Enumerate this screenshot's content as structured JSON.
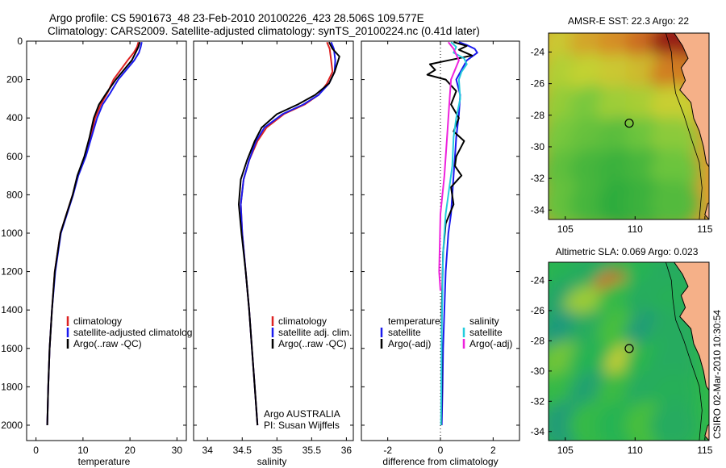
{
  "header": {
    "title_line1": "Argo profile: CS 5901673_48 23-Feb-2010 20100226_423 28.506S 109.577E",
    "title_line2": "Climatology: CARS2009. Satellite-adjusted climatology: synTS_20100224.nc (0.41d later)"
  },
  "side_label": "CSIRO 02-Mar-2010 10:30:54",
  "colors": {
    "climatology": "#dd2222",
    "satellite": "#1a1aee",
    "argo": "#000000",
    "sat_salinity": "#22ccdd",
    "argo_salinity": "#ee22dd",
    "land": "#f5b088",
    "marker": "#000000"
  },
  "chart_data": [
    {
      "type": "line",
      "id": "temperature",
      "xlabel": "temperature",
      "ylabel": "",
      "xlim": [
        -2,
        32
      ],
      "ylim": [
        2080,
        0
      ],
      "y_reversed": true,
      "xticks": [
        0,
        10,
        20,
        30
      ],
      "yticks": [
        0,
        200,
        400,
        600,
        800,
        1000,
        1200,
        1400,
        1600,
        1800,
        2000
      ],
      "legend": [
        "climatology",
        "satellite-adjusted climatolog",
        "Argo(..raw -QC)"
      ],
      "legend_position": "lower-center",
      "series": [
        {
          "name": "climatology",
          "color_key": "climatology",
          "x": [
            21.8,
            21.5,
            20.8,
            19.5,
            16.5,
            15.2,
            13.8,
            12.6,
            11.6,
            10.4,
            8.9,
            7.8,
            6.5,
            5.2,
            4.0,
            3.4,
            2.9,
            2.6,
            2.4
          ],
          "y": [
            5,
            30,
            60,
            100,
            200,
            270,
            330,
            400,
            500,
            600,
            700,
            800,
            900,
            1000,
            1200,
            1400,
            1600,
            1800,
            2000
          ]
        },
        {
          "name": "satellite-adjusted climatolog",
          "color_key": "satellite",
          "x": [
            22.5,
            22.3,
            21.9,
            20.9,
            17.5,
            15.8,
            14.2,
            13.0,
            11.8,
            10.6,
            9.0,
            7.9,
            6.6,
            5.3,
            4.1,
            3.4,
            2.9,
            2.6,
            2.4
          ],
          "y": [
            5,
            30,
            60,
            100,
            200,
            270,
            330,
            400,
            500,
            600,
            700,
            800,
            900,
            1000,
            1200,
            1400,
            1600,
            1800,
            2000
          ]
        },
        {
          "name": "Argo(..raw -QC)",
          "color_key": "argo",
          "x": [
            22.1,
            21.8,
            21.2,
            20.4,
            17.0,
            15.0,
            13.4,
            12.3,
            11.4,
            10.3,
            8.8,
            7.8,
            6.5,
            5.2,
            4.0,
            3.4,
            2.9,
            2.6,
            2.4
          ],
          "y": [
            5,
            30,
            60,
            100,
            200,
            270,
            330,
            400,
            500,
            600,
            700,
            800,
            900,
            1000,
            1200,
            1400,
            1600,
            1800,
            2000
          ]
        }
      ]
    },
    {
      "type": "line",
      "id": "salinity",
      "xlabel": "salinity",
      "ylabel": "",
      "xlim": [
        33.8,
        36.1
      ],
      "ylim": [
        2080,
        0
      ],
      "y_reversed": true,
      "xticks": [
        34,
        34.5,
        35,
        35.5,
        36
      ],
      "yticks": [],
      "legend": [
        "climatology",
        "satellite adj. clim.",
        "Argo(..raw -QC)"
      ],
      "legend_position": "lower-center",
      "annotations": [
        "Argo AUSTRALIA",
        "PI: Susan Wijffels"
      ],
      "series": [
        {
          "name": "climatology",
          "color_key": "climatology",
          "x": [
            35.72,
            35.76,
            35.78,
            35.8,
            35.72,
            35.6,
            35.4,
            35.1,
            34.85,
            34.72,
            34.6,
            34.52,
            34.48,
            34.5,
            34.55,
            34.6,
            34.64,
            34.68,
            34.7,
            34.72
          ],
          "y": [
            5,
            40,
            100,
            160,
            220,
            280,
            330,
            380,
            450,
            520,
            620,
            720,
            850,
            1000,
            1200,
            1400,
            1600,
            1800,
            1900,
            2000
          ]
        },
        {
          "name": "satellite adj. clim.",
          "color_key": "satellite",
          "x": [
            35.78,
            35.82,
            35.84,
            35.83,
            35.75,
            35.6,
            35.38,
            35.08,
            34.82,
            34.7,
            34.6,
            34.52,
            34.48,
            34.5,
            34.55,
            34.6,
            34.64,
            34.68,
            34.7,
            34.72
          ],
          "y": [
            5,
            40,
            100,
            160,
            220,
            280,
            330,
            380,
            450,
            520,
            620,
            720,
            850,
            1000,
            1200,
            1400,
            1600,
            1800,
            1900,
            2000
          ]
        },
        {
          "name": "Argo(..raw -QC)",
          "color_key": "argo",
          "x": [
            35.75,
            35.8,
            35.9,
            35.83,
            35.75,
            35.55,
            35.3,
            35.0,
            34.78,
            34.68,
            34.57,
            34.48,
            34.45,
            34.49,
            34.55,
            34.6,
            34.64,
            34.68,
            34.7,
            34.72
          ],
          "y": [
            5,
            40,
            80,
            160,
            220,
            280,
            330,
            380,
            450,
            520,
            620,
            720,
            850,
            1000,
            1200,
            1400,
            1600,
            1800,
            1900,
            2000
          ]
        }
      ]
    },
    {
      "type": "line",
      "id": "difference",
      "xlabel": "difference from climatology",
      "ylabel": "",
      "xlim": [
        -3,
        3
      ],
      "ylim": [
        2080,
        0
      ],
      "y_reversed": true,
      "xticks": [
        -2,
        0,
        2
      ],
      "yticks": [],
      "legend": [
        "temperature",
        "satellite",
        "Argo(-adj)",
        "salinity",
        "satellite",
        "Argo(-adj)"
      ],
      "legend_position": "lower-center",
      "series": [
        {
          "name": "satellite",
          "group": "temperature",
          "color_key": "satellite",
          "x": [
            0.7,
            1.0,
            1.3,
            1.4,
            1.0,
            0.8,
            0.6,
            0.75,
            0.7,
            0.6,
            0.55,
            0.5,
            0.45,
            0.4,
            0.3,
            0.2,
            0.15,
            0.1,
            0.08,
            0.05
          ],
          "y": [
            5,
            20,
            40,
            60,
            100,
            150,
            200,
            280,
            380,
            500,
            600,
            700,
            800,
            900,
            1000,
            1200,
            1400,
            1600,
            1800,
            2000
          ]
        },
        {
          "name": "Argo(-adj)",
          "group": "temperature",
          "color_key": "argo",
          "x": [
            0.5,
            1.0,
            0.7,
            1.2,
            0.3,
            -0.4,
            -0.2,
            -0.5,
            0.2,
            0.6,
            0.4,
            0.7,
            0.5,
            0.9,
            0.6,
            0.55,
            0.8,
            0.4,
            0.5,
            0.2,
            0.1,
            0.05,
            0.05,
            0.03
          ],
          "y": [
            5,
            25,
            45,
            75,
            100,
            120,
            150,
            175,
            200,
            260,
            330,
            400,
            470,
            520,
            600,
            650,
            700,
            760,
            850,
            950,
            1100,
            1400,
            1700,
            2000
          ]
        },
        {
          "name": "satellite",
          "group": "salinity",
          "color_key": "sat_salinity",
          "x": [
            0.4,
            0.6,
            0.5,
            0.9,
            1.0,
            0.8,
            0.7,
            0.75,
            0.6,
            0.5,
            0.45,
            0.3,
            0.2,
            0.1,
            0.05,
            0.02
          ],
          "y": [
            5,
            30,
            60,
            90,
            120,
            160,
            200,
            300,
            400,
            500,
            650,
            800,
            900,
            1100,
            1500,
            2000
          ]
        },
        {
          "name": "Argo(-adj)",
          "group": "salinity",
          "color_key": "argo_salinity",
          "x": [
            0.3,
            0.5,
            0.7,
            0.4,
            0.35,
            0.3,
            0.25,
            0.15,
            0.0,
            -0.05,
            0.0
          ],
          "y": [
            5,
            40,
            100,
            200,
            300,
            400,
            500,
            700,
            900,
            1200,
            1300
          ]
        }
      ]
    },
    {
      "type": "heatmap",
      "id": "sst-map",
      "title": "AMSR-E SST: 22.3  Argo: 22",
      "xlim": [
        103.8,
        115.3
      ],
      "ylim": [
        -34.6,
        -22.8
      ],
      "xticks": [
        105,
        110,
        115
      ],
      "yticks": [
        -24,
        -26,
        -28,
        -30,
        -32,
        -34
      ],
      "marker": {
        "lon": 109.577,
        "lat": -28.506
      },
      "cells": [
        {
          "lon": 105.0,
          "lat": -23.6,
          "value": 22.8
        },
        {
          "lon": 107.0,
          "lat": -23.6,
          "value": 23.3
        },
        {
          "lon": 109.0,
          "lat": -23.6,
          "value": 23.6
        },
        {
          "lon": 111.0,
          "lat": -23.6,
          "value": 24.0
        },
        {
          "lon": 112.8,
          "lat": -23.6,
          "value": 24.8
        },
        {
          "lon": 105.0,
          "lat": -25.6,
          "value": 22.4
        },
        {
          "lon": 107.0,
          "lat": -25.6,
          "value": 22.6
        },
        {
          "lon": 109.0,
          "lat": -25.6,
          "value": 22.8
        },
        {
          "lon": 111.0,
          "lat": -25.6,
          "value": 23.0
        },
        {
          "lon": 112.8,
          "lat": -25.6,
          "value": 23.8
        },
        {
          "lon": 105.0,
          "lat": -27.6,
          "value": 22.1
        },
        {
          "lon": 107.0,
          "lat": -27.6,
          "value": 21.8
        },
        {
          "lon": 109.0,
          "lat": -27.6,
          "value": 22.2
        },
        {
          "lon": 111.0,
          "lat": -27.6,
          "value": 22.3
        },
        {
          "lon": 112.8,
          "lat": -27.6,
          "value": 22.7
        },
        {
          "lon": 105.0,
          "lat": -29.6,
          "value": 21.8
        },
        {
          "lon": 107.0,
          "lat": -29.6,
          "value": 21.5
        },
        {
          "lon": 109.0,
          "lat": -29.6,
          "value": 21.3
        },
        {
          "lon": 111.0,
          "lat": -29.6,
          "value": 21.6
        },
        {
          "lon": 112.8,
          "lat": -29.6,
          "value": 22.0
        },
        {
          "lon": 105.0,
          "lat": -31.6,
          "value": 21.4
        },
        {
          "lon": 107.0,
          "lat": -31.6,
          "value": 21.0
        },
        {
          "lon": 109.0,
          "lat": -31.6,
          "value": 20.8
        },
        {
          "lon": 111.0,
          "lat": -31.6,
          "value": 21.0
        },
        {
          "lon": 112.8,
          "lat": -31.6,
          "value": 21.6
        },
        {
          "lon": 105.0,
          "lat": -33.6,
          "value": 21.5
        },
        {
          "lon": 107.0,
          "lat": -33.6,
          "value": 21.0
        },
        {
          "lon": 109.0,
          "lat": -33.6,
          "value": 20.6
        },
        {
          "lon": 111.0,
          "lat": -33.6,
          "value": 20.8
        },
        {
          "lon": 112.8,
          "lat": -33.6,
          "value": 21.2
        }
      ]
    },
    {
      "type": "heatmap",
      "id": "sla-map",
      "title": "Altimetric SLA: 0.069  Argo: 0.023",
      "xlim": [
        103.8,
        115.3
      ],
      "ylim": [
        -34.6,
        -22.8
      ],
      "xticks": [
        105,
        110,
        115
      ],
      "yticks": [
        -24,
        -26,
        -28,
        -30,
        -32,
        -34
      ],
      "marker": {
        "lon": 109.577,
        "lat": -28.506
      },
      "cells": [
        {
          "lon": 105.0,
          "lat": -23.6,
          "value": 0.02
        },
        {
          "lon": 107.0,
          "lat": -23.6,
          "value": 0.0
        },
        {
          "lon": 108.6,
          "lat": -25.0,
          "value": 0.22
        },
        {
          "lon": 111.0,
          "lat": -23.6,
          "value": 0.02
        },
        {
          "lon": 112.8,
          "lat": -23.6,
          "value": 0.0
        },
        {
          "lon": 105.0,
          "lat": -25.6,
          "value": -0.02
        },
        {
          "lon": 106.6,
          "lat": -26.0,
          "value": 0.12
        },
        {
          "lon": 109.0,
          "lat": -25.6,
          "value": 0.05
        },
        {
          "lon": 111.0,
          "lat": -25.6,
          "value": 0.0
        },
        {
          "lon": 112.8,
          "lat": -25.6,
          "value": 0.01
        },
        {
          "lon": 105.0,
          "lat": -27.6,
          "value": -0.05
        },
        {
          "lon": 107.0,
          "lat": -27.6,
          "value": 0.0
        },
        {
          "lon": 109.0,
          "lat": -27.6,
          "value": 0.08
        },
        {
          "lon": 111.0,
          "lat": -27.6,
          "value": -0.04
        },
        {
          "lon": 112.8,
          "lat": -27.6,
          "value": 0.0
        },
        {
          "lon": 105.0,
          "lat": -29.6,
          "value": 0.1
        },
        {
          "lon": 107.0,
          "lat": -29.6,
          "value": 0.02
        },
        {
          "lon": 109.6,
          "lat": -29.8,
          "value": 0.14
        },
        {
          "lon": 111.0,
          "lat": -29.6,
          "value": 0.03
        },
        {
          "lon": 112.8,
          "lat": -29.6,
          "value": 0.0
        },
        {
          "lon": 105.0,
          "lat": -31.6,
          "value": 0.05
        },
        {
          "lon": 107.0,
          "lat": -31.6,
          "value": -0.03
        },
        {
          "lon": 109.0,
          "lat": -31.6,
          "value": 0.06
        },
        {
          "lon": 111.0,
          "lat": -31.6,
          "value": 0.0
        },
        {
          "lon": 112.8,
          "lat": -31.6,
          "value": 0.01
        },
        {
          "lon": 105.0,
          "lat": -33.6,
          "value": -0.04
        },
        {
          "lon": 107.0,
          "lat": -33.6,
          "value": 0.05
        },
        {
          "lon": 109.0,
          "lat": -33.6,
          "value": 0.02
        },
        {
          "lon": 111.0,
          "lat": -33.6,
          "value": 0.08
        },
        {
          "lon": 112.8,
          "lat": -33.6,
          "value": 0.0
        }
      ]
    }
  ]
}
